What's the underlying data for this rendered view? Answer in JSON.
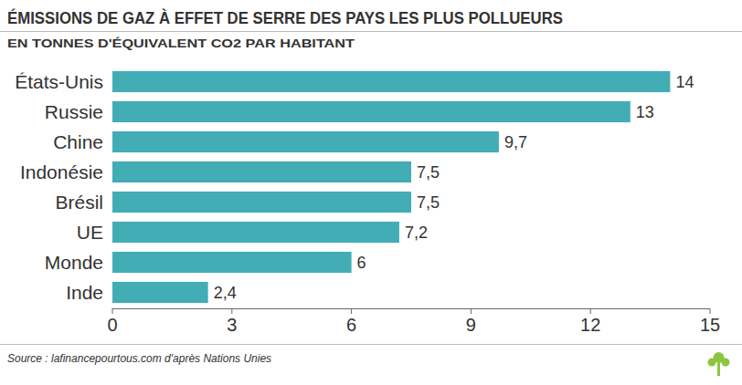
{
  "chart_data": {
    "type": "bar",
    "orientation": "horizontal",
    "title": "ÉMISSIONS DE GAZ À EFFET DE SERRE DES PAYS LES PLUS POLLUEURS",
    "subtitle": "EN TONNES D'ÉQUIVALENT CO2 PAR HABITANT",
    "source": "Source : lafinancepourtous.com d'après Nations Unies",
    "categories": [
      "États-Unis",
      "Russie",
      "Chine",
      "Indonésie",
      "Brésil",
      "UE",
      "Monde",
      "Inde"
    ],
    "values": [
      14,
      13,
      9.7,
      7.5,
      7.5,
      7.2,
      6,
      2.4
    ],
    "value_labels": [
      "14",
      "13",
      "9,7",
      "7,5",
      "7,5",
      "7,2",
      "6",
      "2,4"
    ],
    "color": "#42adb5",
    "xlim": [
      0,
      15
    ],
    "xticks": [
      0,
      3,
      6,
      9,
      12,
      15
    ],
    "grid": false,
    "data_labels": true
  }
}
